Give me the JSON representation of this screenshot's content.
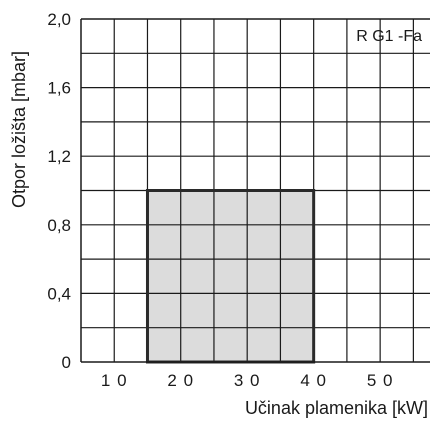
{
  "chart_data": {
    "type": "area",
    "title": "R G1 -Fa",
    "xlabel": "Učinak plamenika [kW]",
    "ylabel": "Otpor ložišta [mbar]",
    "xlim": [
      5,
      57.5
    ],
    "ylim": [
      0,
      2.0
    ],
    "x_ticks": [
      {
        "value": 10,
        "label": "1 0"
      },
      {
        "value": 20,
        "label": "2 0"
      },
      {
        "value": 30,
        "label": "3 0"
      },
      {
        "value": 40,
        "label": "4 0"
      },
      {
        "value": 50,
        "label": "5 0"
      }
    ],
    "y_ticks": [
      {
        "value": 0,
        "label": "0"
      },
      {
        "value": 0.4,
        "label": "0,4"
      },
      {
        "value": 0.8,
        "label": "0,8"
      },
      {
        "value": 1.2,
        "label": "1,2"
      },
      {
        "value": 1.6,
        "label": "1,6"
      },
      {
        "value": 2.0,
        "label": "2,0"
      }
    ],
    "grid": true,
    "grid_x_step": 5,
    "grid_y_step": 0.2,
    "working_range": {
      "x_min": 15,
      "x_max": 40,
      "y_min": 0,
      "y_max": 1.0,
      "fill": "#dcdcdc"
    },
    "colors": {
      "grid": "#1a1a1a",
      "frame": "#1a1a1a",
      "range_border": "#2a2a2a"
    }
  }
}
